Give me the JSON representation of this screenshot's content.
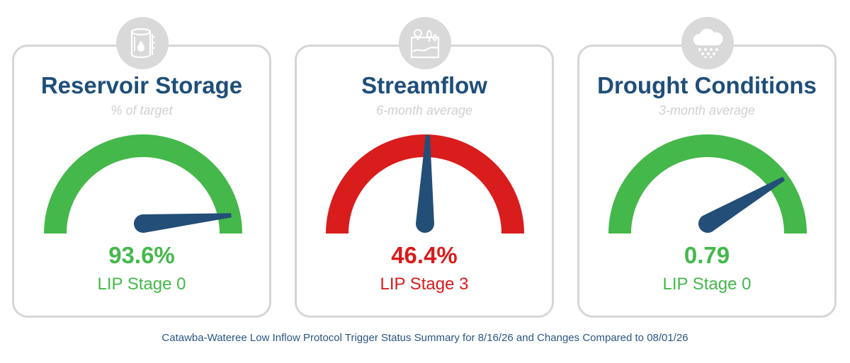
{
  "cards": [
    {
      "title": "Reservoir Storage",
      "subtitle": "% of target",
      "value": "93.6%",
      "stage": "LIP Stage 0",
      "icon": "reservoir-icon",
      "arc_color": "#44b84a",
      "value_color": "#44b84a",
      "needle_fraction": 0.97
    },
    {
      "title": "Streamflow",
      "subtitle": "6-month average",
      "value": "46.4%",
      "stage": "LIP Stage 3",
      "icon": "landscape-icon",
      "arc_color": "#d91c1c",
      "value_color": "#d91c1c",
      "needle_fraction": 0.51
    },
    {
      "title": "Drought Conditions",
      "subtitle": "3-month average",
      "value": "0.79",
      "stage": "LIP Stage 0",
      "icon": "rain-cloud-icon",
      "arc_color": "#44b84a",
      "value_color": "#44b84a",
      "needle_fraction": 0.83
    }
  ],
  "needle_color": "#234e78",
  "footer": "Catawba-Wateree Low Inflow Protocol Trigger Status Summary for 8/16/26 and Changes Compared to 08/01/26"
}
